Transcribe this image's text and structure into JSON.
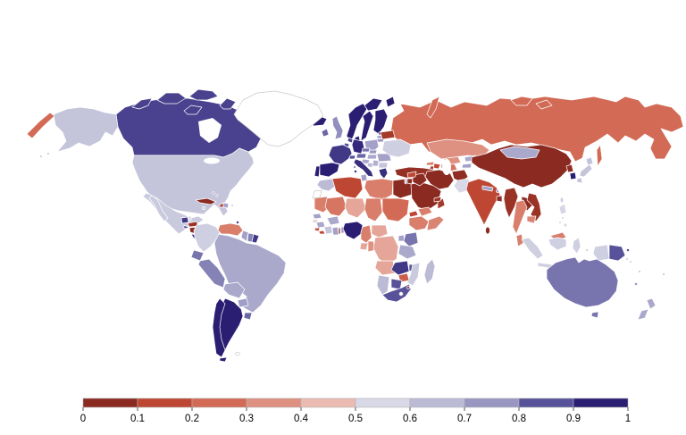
{
  "chart_data": {
    "type": "heatmap",
    "subtype": "world-choropleth",
    "title": "",
    "legend": {
      "position": "bottom",
      "ticks": [
        "0",
        "0.1",
        "0.2",
        "0.3",
        "0.4",
        "0.5",
        "0.6",
        "0.7",
        "0.8",
        "0.9",
        "1"
      ],
      "colors": [
        "#8B2A21",
        "#BE4733",
        "#D26A55",
        "#DE9181",
        "#EBBAB1",
        "#D8D8E7",
        "#BBBBD6",
        "#9996C2",
        "#575299",
        "#2A1E73"
      ],
      "range": [
        0,
        1
      ]
    },
    "no_data_color": "#ffffff",
    "values": {
      "Canada": 0.88,
      "United States": 0.62,
      "Mexico": 0.6,
      "Greenland": null,
      "Cuba": 0.04,
      "Jamaica": 0.6,
      "Haiti": 0.12,
      "Dominican Republic": 0.72,
      "Puerto Rico": 0.6,
      "Bahamas": 0.7,
      "Trinidad and Tobago": 0.9,
      "Guatemala": 0.9,
      "Belize": 0.55,
      "Honduras": 0.08,
      "El Salvador": 0.88,
      "Nicaragua": 0.05,
      "Costa Rica": 0.9,
      "Panama": 0.87,
      "Colombia": 0.58,
      "Venezuela": 0.3,
      "Guyana": 0.72,
      "Suriname": 0.78,
      "French Guiana": 0.9,
      "Ecuador": 0.8,
      "Peru": 0.78,
      "Brazil": 0.7,
      "Bolivia": 0.7,
      "Paraguay": 0.73,
      "Uruguay": 0.82,
      "Argentina": 0.96,
      "Chile": 0.96,
      "Falkland Islands": null,
      "Iceland": 0.95,
      "Ireland": 0.82,
      "United Kingdom": 0.76,
      "Portugal": 0.95,
      "Spain": 0.95,
      "France": 0.9,
      "Belgium": 0.85,
      "Netherlands": 0.88,
      "Germany": 0.93,
      "Denmark": 0.95,
      "Norway": 0.96,
      "Sweden": 0.96,
      "Finland": 0.95,
      "Estonia": 0.9,
      "Latvia": 0.72,
      "Lithuania": 0.75,
      "Poland": 0.72,
      "Czechia": 0.8,
      "Slovakia": 0.75,
      "Austria": 0.82,
      "Switzerland": 0.85,
      "Hungary": 0.7,
      "Croatia": 0.7,
      "Bosnia and Herzegovina": 0.65,
      "Serbia": 0.68,
      "Greece": 0.92,
      "Bulgaria": 0.62,
      "Romania": 0.72,
      "Ukraine": 0.58,
      "Belarus": 0.1,
      "Italy": 0.92,
      "Turkey": 0.07,
      "Georgia": 0.3,
      "Armenia": 0.12,
      "Azerbaijan": 0.15,
      "Russia": 0.25,
      "Morocco": 0.65,
      "Western Sahara": null,
      "Algeria": 0.15,
      "Tunisia": 0.72,
      "Libya": 0.3,
      "Egypt": 0.05,
      "Mauritania": 0.3,
      "Mali": 0.28,
      "Niger": 0.4,
      "Chad": 0.3,
      "Sudan": 0.25,
      "Eritrea": 0.15,
      "Ethiopia": 0.3,
      "Somalia": 0.32,
      "Senegal": 0.72,
      "Guinea-Bissau": 0.5,
      "Guinea": 0.7,
      "Sierra Leone": 0.2,
      "Liberia": 0.15,
      "Ivory Coast": 0.62,
      "Ghana": 0.72,
      "Togo": 0.08,
      "Benin": 0.75,
      "Burkina Faso": 0.7,
      "Nigeria": 0.96,
      "Cameroon": 0.3,
      "Gabon": 0.4,
      "Congo": 0.35,
      "Central African Republic": 0.4,
      "DR Congo": 0.4,
      "Uganda": 0.72,
      "Kenya": 0.8,
      "Tanzania": 0.7,
      "Angola": 0.4,
      "Zambia": 0.9,
      "Malawi": 0.85,
      "Mozambique": 0.6,
      "Zimbabwe": 0.22,
      "Botswana": 0.85,
      "Namibia": 0.65,
      "South Africa": 0.85,
      "Eswatini": 0.08,
      "Lesotho": null,
      "Madagascar": 0.65,
      "Saudi Arabia": 0.04,
      "Yemen": 0.3,
      "Oman": 0.1,
      "United Arab Emirates": 0.08,
      "Iraq": 0.04,
      "Syria": 0.15,
      "Jordan": 0.05,
      "Israel": 0.6,
      "Iran": 0.05,
      "Afghanistan": 0.06,
      "Pakistan": 0.55,
      "Turkmenistan": 0.28,
      "Uzbekistan": 0.35,
      "Kazakhstan": 0.35,
      "Kyrgyzstan": 0.7,
      "Tajikistan": 0.72,
      "India": 0.15,
      "Nepal": 0.72,
      "Bhutan": 0.75,
      "Bangladesh": 0.06,
      "Sri Lanka": 0.05,
      "Myanmar": 0.08,
      "Thailand": 0.3,
      "Laos": 0.05,
      "Vietnam": 0.08,
      "Cambodia": 0.32,
      "Malaysia": 0.3,
      "Indonesia": 0.58,
      "Philippines": 0.56,
      "Taiwan": 0.58,
      "China": 0.04,
      "Mongolia": 0.7,
      "North Korea": 0.06,
      "South Korea": 0.95,
      "Japan": 0.62,
      "Papua New Guinea": 0.85,
      "Australia": 0.8,
      "New Zealand": 0.7,
      "Fiji": 0.6,
      "Solomon Islands": 0.6,
      "Vanuatu": 0.65,
      "New Caledonia": 0.75
    }
  }
}
